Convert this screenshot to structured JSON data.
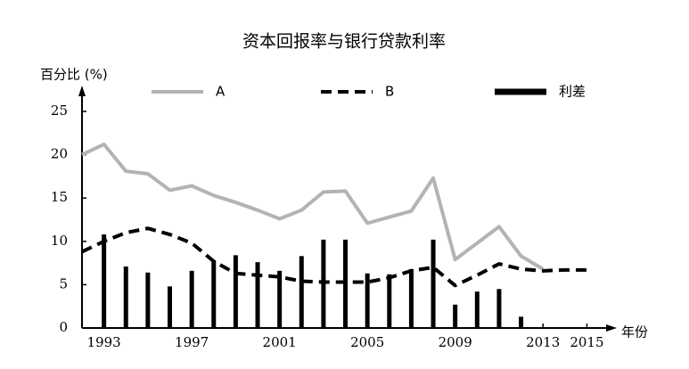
{
  "chart_data": {
    "type": "line",
    "title": "资本回报率与银行贷款利率",
    "y_label": "百分比 (%)",
    "x_label": "年份",
    "x": [
      1992,
      1993,
      1994,
      1995,
      1996,
      1997,
      1998,
      1999,
      2000,
      2001,
      2002,
      2003,
      2004,
      2005,
      2006,
      2007,
      2008,
      2009,
      2010,
      2011,
      2012,
      2013,
      2014,
      2015
    ],
    "series": [
      {
        "name": "A",
        "style": "solid",
        "color": "#b3b3b3",
        "values": [
          20,
          21.2,
          18.1,
          17.8,
          15.9,
          16.4,
          15.3,
          14.5,
          13.6,
          12.6,
          13.6,
          15.7,
          15.8,
          12.1,
          12.8,
          13.5,
          17.3,
          7.9,
          9.8,
          11.7,
          8.3,
          6.8,
          null,
          null
        ]
      },
      {
        "name": "B",
        "style": "dashed",
        "color": "#000000",
        "values": [
          8.8,
          10,
          11,
          11.5,
          10.8,
          9.8,
          7.7,
          6.3,
          6.1,
          5.9,
          5.4,
          5.3,
          5.3,
          5.3,
          5.8,
          6.6,
          7,
          4.9,
          6.1,
          7.4,
          6.8,
          6.6,
          6.7,
          6.7
        ]
      },
      {
        "name": "利差",
        "style": "bar",
        "color": "#000000",
        "values": [
          null,
          10.8,
          7.1,
          6.4,
          4.8,
          6.6,
          7.8,
          8.4,
          7.6,
          6.6,
          8.3,
          10.2,
          10.2,
          6.3,
          6.2,
          6.8,
          10.2,
          2.7,
          4.2,
          4.5,
          1.3,
          null,
          null,
          null
        ]
      }
    ],
    "xlim": [
      1992,
      2016.2
    ],
    "xticks": [
      1993,
      1997,
      2001,
      2005,
      2009,
      2013,
      2015
    ],
    "ylim": [
      0,
      25
    ],
    "yticks": [
      0,
      5,
      10,
      15,
      20,
      25
    ],
    "grid": false
  }
}
